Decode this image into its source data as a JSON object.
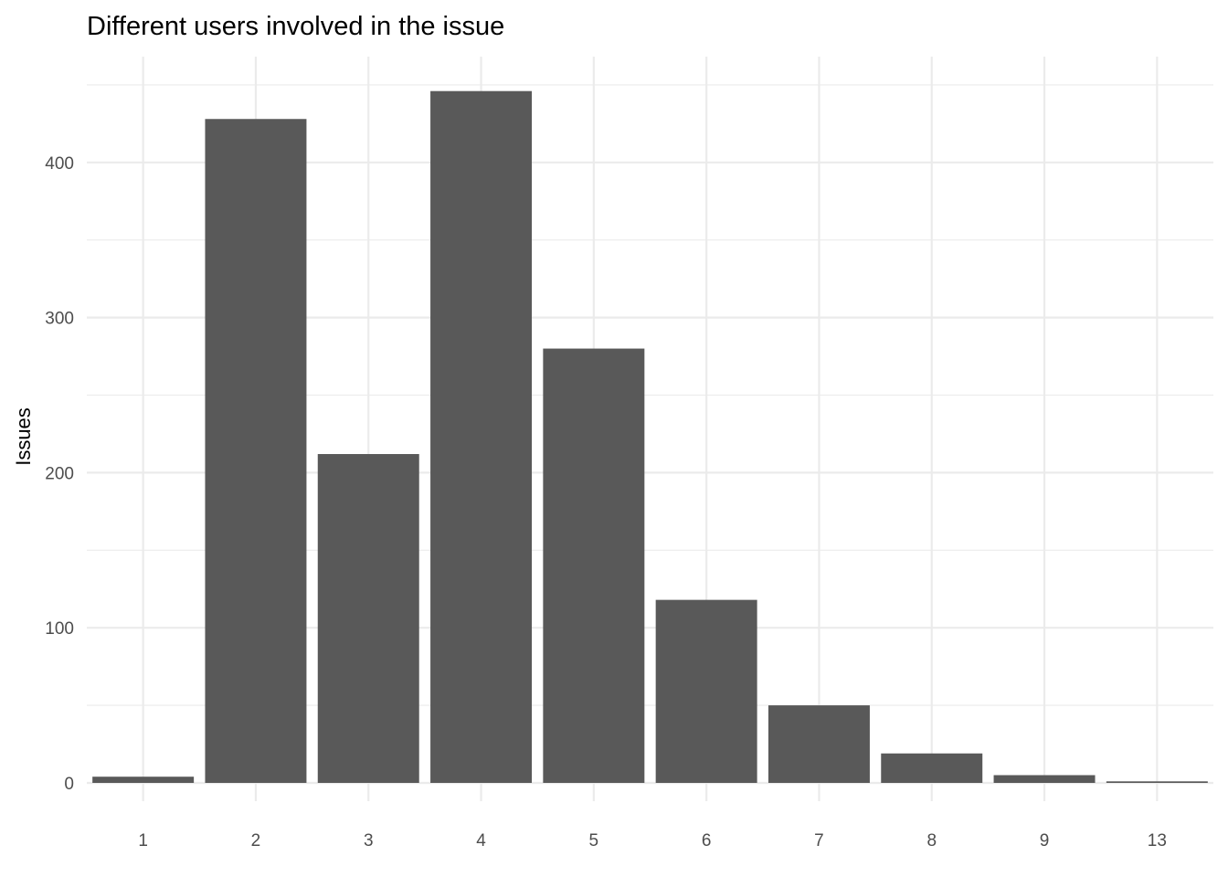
{
  "chart_data": {
    "type": "bar",
    "title": "Different users involved in the issue",
    "xlabel": "",
    "ylabel": "Issues",
    "categories": [
      "1",
      "2",
      "3",
      "4",
      "5",
      "6",
      "7",
      "8",
      "9",
      "13"
    ],
    "values": [
      4,
      428,
      212,
      446,
      280,
      118,
      50,
      19,
      5,
      1
    ],
    "ylim": [
      0,
      468
    ],
    "yticks": [
      0,
      100,
      200,
      300,
      400
    ],
    "yminor": [
      50,
      150,
      250,
      350,
      450
    ],
    "grid": true,
    "legend": "none",
    "bar_color": "#595959",
    "grid_color": "#ebebeb"
  }
}
